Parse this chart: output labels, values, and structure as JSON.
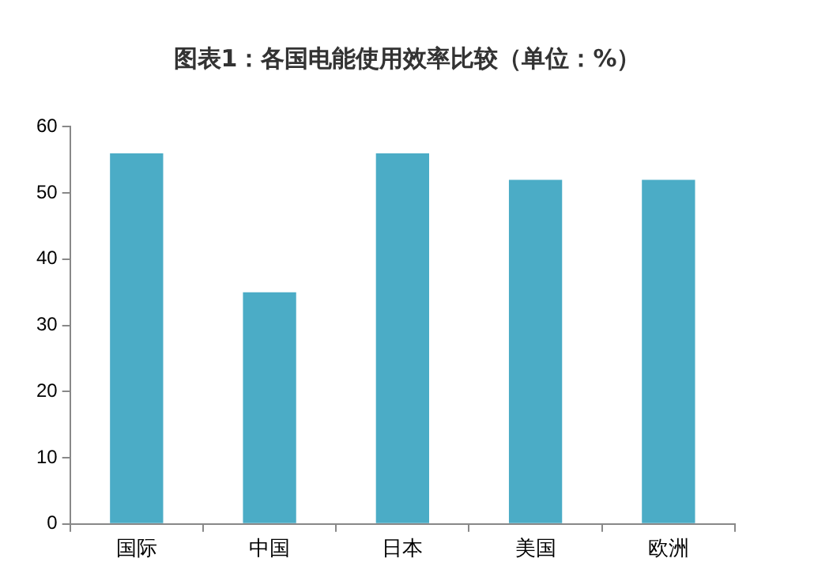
{
  "chart_data": {
    "type": "bar",
    "title": "图表1：各国电能使用效率比较（单位：%）",
    "categories": [
      "国际",
      "中国",
      "日本",
      "美国",
      "欧洲"
    ],
    "values": [
      56,
      35,
      56,
      52,
      52
    ],
    "color": "#4bacc6",
    "ylim": [
      0,
      60
    ],
    "yticks": [
      0,
      10,
      20,
      30,
      40,
      50,
      60
    ],
    "grid": false,
    "legend": false
  }
}
